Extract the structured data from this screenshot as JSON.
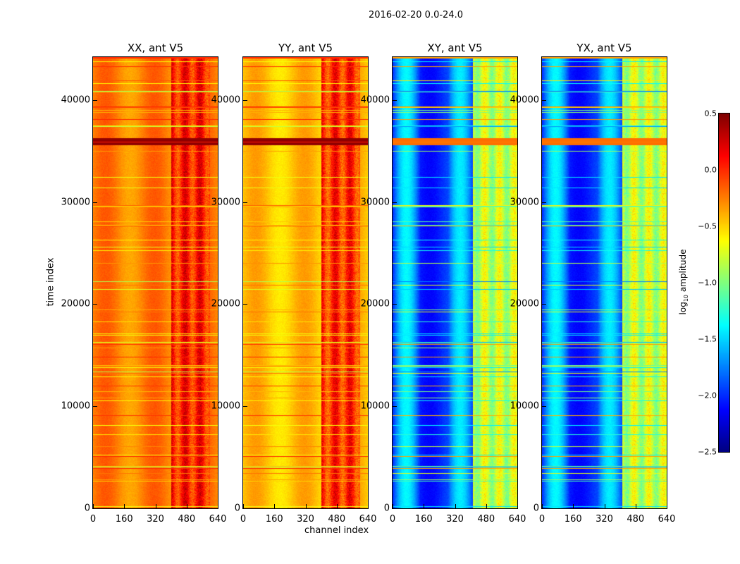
{
  "chart_data": {
    "type": "heatmap",
    "title": "2016-02-20 0.0-24.0",
    "xlabel": "channel index",
    "ylabel": "time index",
    "xlim": [
      0,
      640
    ],
    "ylim": [
      0,
      44200
    ],
    "xticks": [
      "0",
      "160",
      "320",
      "480",
      "640"
    ],
    "yticks": [
      "0",
      "10000",
      "20000",
      "30000",
      "40000"
    ],
    "ytick_values": [
      0,
      10000,
      20000,
      30000,
      40000
    ],
    "xtick_values": [
      0,
      160,
      320,
      480,
      640
    ],
    "colormap": "jet",
    "colorbar": {
      "label_main": "log",
      "label_sub": "10",
      "label_rest": " amplitude",
      "range": [
        -2.5,
        0.5
      ],
      "ticks": [
        "0.5",
        "0.0",
        "−0.5",
        "−1.0",
        "−1.5",
        "−2.0",
        "−2.5"
      ],
      "tick_values": [
        0.5,
        0.0,
        -0.5,
        -1.0,
        -1.5,
        -2.0,
        -2.5
      ]
    },
    "panels": [
      {
        "title": "XX, ant V5",
        "base_log10": -0.25,
        "rfi_channels": [
          400,
          600
        ],
        "rfi_log10": 0.05
      },
      {
        "title": "YY, ant V5",
        "base_log10": -0.45,
        "rfi_channels": [
          400,
          600
        ],
        "rfi_log10": 0.0
      },
      {
        "title": "XY, ant V5",
        "base_log10": -2.0,
        "rfi_channels": [
          410,
          640
        ],
        "rfi_log10": -0.8
      },
      {
        "title": "YX, ant V5",
        "base_log10": -2.0,
        "rfi_channels": [
          410,
          640
        ],
        "rfi_log10": -0.8
      }
    ],
    "flag_band_time": [
      35600,
      36300
    ]
  }
}
